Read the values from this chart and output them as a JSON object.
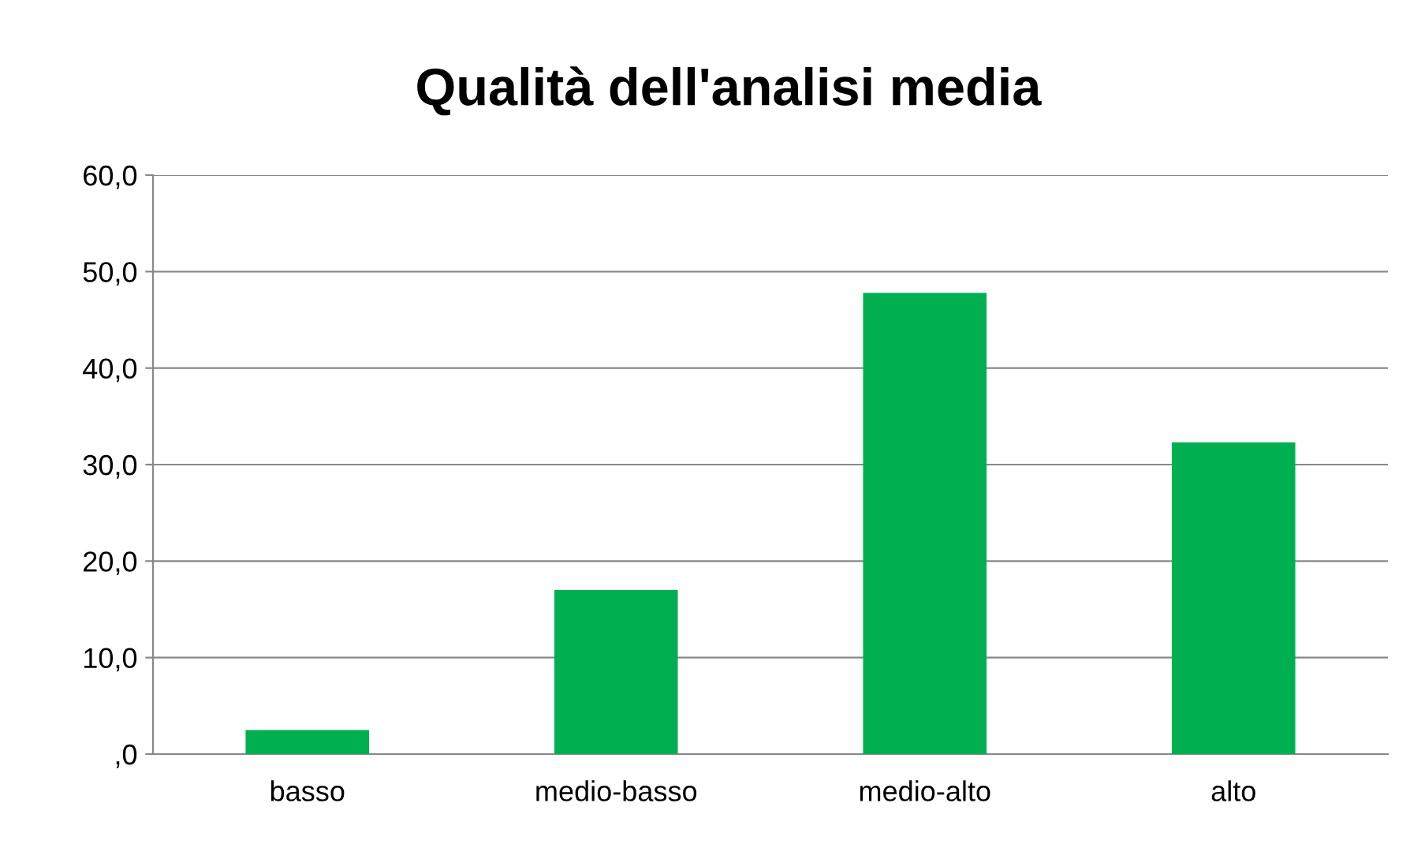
{
  "chart_data": {
    "type": "bar",
    "title": "Qualità dell'analisi media",
    "categories": [
      "basso",
      "medio-basso",
      "medio-alto",
      "alto"
    ],
    "values": [
      2.5,
      17.0,
      47.8,
      32.3
    ],
    "color": "#00b050",
    "ylim": [
      0,
      60
    ],
    "yticks": [
      {
        "value": 0,
        "label": ",0"
      },
      {
        "value": 10,
        "label": "10,0"
      },
      {
        "value": 20,
        "label": "20,0"
      },
      {
        "value": 30,
        "label": "30,0"
      },
      {
        "value": 40,
        "label": "40,0"
      },
      {
        "value": 50,
        "label": "50,0"
      },
      {
        "value": 60,
        "label": "60,0"
      }
    ],
    "grid": "y"
  }
}
